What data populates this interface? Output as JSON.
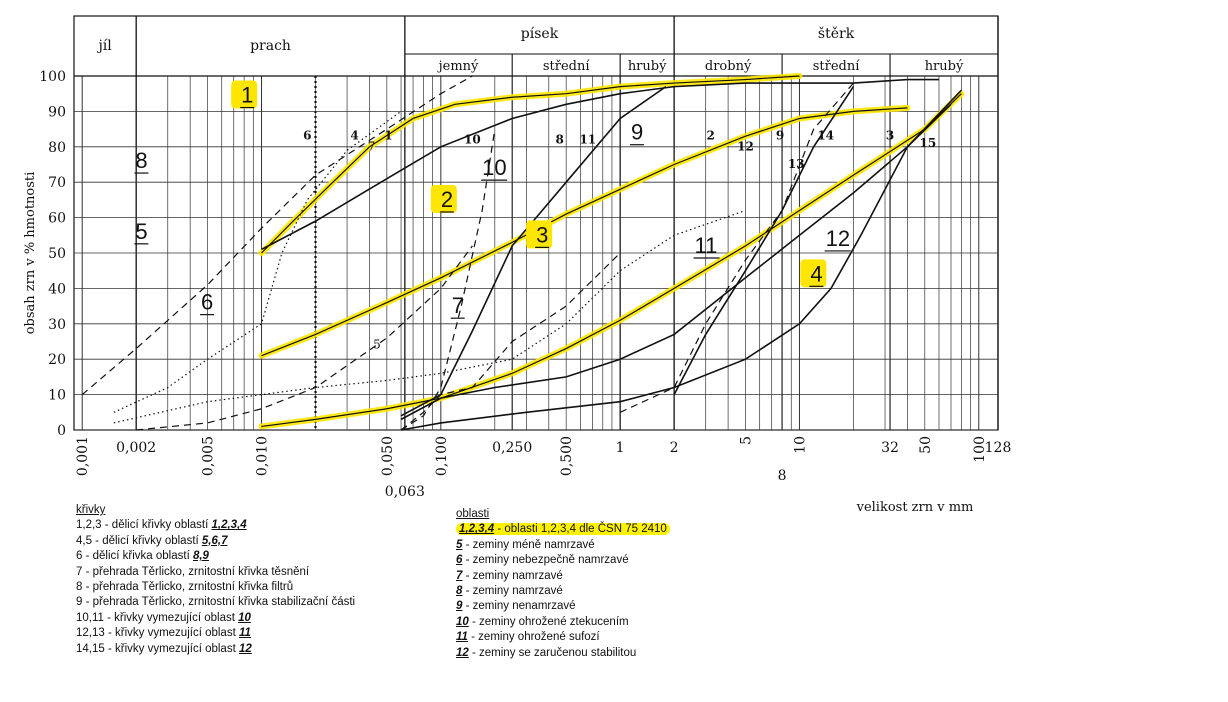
{
  "chart_data": {
    "type": "line",
    "ylabel": "obsah zrn v % hmotnosti",
    "xlabel": "velikost zrn v mm",
    "x_scale": "log",
    "xlim": [
      0.001,
      128
    ],
    "ylim": [
      0,
      100
    ],
    "grid": true,
    "y_ticks": [
      "0",
      "10",
      "20",
      "30",
      "40",
      "50",
      "60",
      "70",
      "80",
      "90",
      "100"
    ],
    "y_tick_values": [
      0,
      10,
      20,
      30,
      40,
      50,
      60,
      70,
      80,
      90,
      100
    ],
    "x_tick_labels": [
      {
        "v": 0.001,
        "t": "0,001",
        "rot": true
      },
      {
        "v": 0.002,
        "t": "0,002",
        "rot": false
      },
      {
        "v": 0.005,
        "t": "0,005",
        "rot": true
      },
      {
        "v": 0.01,
        "t": "0,010",
        "rot": true
      },
      {
        "v": 0.05,
        "t": "0,050",
        "rot": true
      },
      {
        "v": 0.063,
        "t": "0,063",
        "rot": false,
        "low": true
      },
      {
        "v": 0.1,
        "t": "0,100",
        "rot": true
      },
      {
        "v": 0.25,
        "t": "0,250",
        "rot": false
      },
      {
        "v": 0.5,
        "t": "0,500",
        "rot": true
      },
      {
        "v": 1,
        "t": "1",
        "rot": false
      },
      {
        "v": 2,
        "t": "2",
        "rot": false
      },
      {
        "v": 5,
        "t": "5",
        "rot": true
      },
      {
        "v": 8,
        "t": "8",
        "rot": false
      },
      {
        "v": 10,
        "t": "10",
        "rot": true
      },
      {
        "v": 32,
        "t": "32",
        "rot": false
      },
      {
        "v": 50,
        "t": "50",
        "rot": true
      },
      {
        "v": 100,
        "t": "100",
        "rot": true
      },
      {
        "v": 128,
        "t": "128",
        "rot": false
      }
    ],
    "header": {
      "row1": [
        {
          "label": "jíl",
          "from": 0.0009,
          "to": 0.002
        },
        {
          "label": "prach",
          "from": 0.002,
          "to": 0.063
        },
        {
          "label": "písek",
          "from": 0.063,
          "to": 2
        },
        {
          "label": "štěrk",
          "from": 2,
          "to": 128
        }
      ],
      "row2": [
        {
          "label": "jemný",
          "from": 0.063,
          "to": 0.25
        },
        {
          "label": "střední",
          "from": 0.25,
          "to": 1
        },
        {
          "label": "hrubý",
          "from": 1,
          "to": 2
        },
        {
          "label": "drobný",
          "from": 2,
          "to": 8
        },
        {
          "label": "střední",
          "from": 8,
          "to": 32
        },
        {
          "label": "hrubý",
          "from": 32,
          "to": 128
        }
      ]
    },
    "series": [
      {
        "name": "1",
        "style": "solid-yellow",
        "x": [
          0.01,
          0.015,
          0.025,
          0.04,
          0.07,
          0.12,
          0.25,
          0.5,
          1,
          2,
          5,
          10
        ],
        "y": [
          50,
          59,
          70,
          80,
          88,
          92,
          94,
          95,
          97,
          98,
          99,
          100
        ]
      },
      {
        "name": "2",
        "style": "solid-yellow",
        "x": [
          0.01,
          0.02,
          0.05,
          0.1,
          0.25,
          0.5,
          1,
          2,
          5,
          10,
          20,
          40
        ],
        "y": [
          21,
          27,
          36,
          43,
          53,
          61,
          68,
          75,
          83,
          88,
          90,
          91
        ]
      },
      {
        "name": "3",
        "style": "solid-yellow",
        "x": [
          0.01,
          0.02,
          0.05,
          0.1,
          0.25,
          0.5,
          1,
          2,
          5,
          10,
          20,
          50,
          80
        ],
        "y": [
          1,
          3,
          6,
          9,
          16,
          23,
          31,
          40,
          52,
          62,
          72,
          85,
          95
        ]
      },
      {
        "name": "4",
        "style": "solid",
        "x": [
          0.01,
          0.02,
          0.05,
          0.1,
          0.25,
          0.5,
          1,
          2,
          5,
          10,
          20,
          40,
          60
        ],
        "y": [
          51,
          59,
          71,
          80,
          88,
          92,
          95,
          97,
          98,
          98,
          98,
          99,
          99
        ]
      },
      {
        "name": "5",
        "style": "dashed",
        "x": [
          0.002,
          0.005,
          0.01,
          0.02,
          0.05,
          0.1,
          0.15
        ],
        "y": [
          0,
          2,
          6,
          12,
          26,
          40,
          52
        ]
      },
      {
        "name": "6",
        "style": "dashed",
        "x": [
          0.001,
          0.002,
          0.005,
          0.01,
          0.02,
          0.05,
          0.1,
          0.15
        ],
        "y": [
          10,
          23,
          41,
          57,
          72,
          85,
          95,
          100
        ]
      },
      {
        "name": "7",
        "style": "dotted",
        "x": [
          0.0015,
          0.003,
          0.005,
          0.01,
          0.013,
          0.018,
          0.03,
          0.06
        ],
        "y": [
          5,
          12,
          20,
          30,
          50,
          65,
          79,
          90
        ]
      },
      {
        "name": "8",
        "style": "dashed",
        "x": [
          0.06,
          0.08,
          0.1,
          0.13,
          0.17,
          0.2
        ],
        "y": [
          0,
          4,
          12,
          35,
          62,
          85
        ]
      },
      {
        "name": "9",
        "style": "solid",
        "x": [
          0.06,
          0.1,
          0.15,
          0.25,
          0.5,
          1,
          1.8
        ],
        "y": [
          4,
          10,
          28,
          52,
          70,
          88,
          97
        ]
      },
      {
        "name": "10",
        "style": "dashed",
        "x": [
          0.06,
          0.08,
          0.1,
          0.15,
          0.25,
          0.5,
          1
        ],
        "y": [
          0,
          5,
          10,
          12,
          25,
          35,
          50
        ]
      },
      {
        "name": "11",
        "style": "solid",
        "x": [
          0.06,
          0.1,
          0.2,
          0.5,
          1,
          2,
          5,
          10,
          20,
          40,
          70
        ],
        "y": [
          3,
          9,
          12,
          15,
          20,
          27,
          43,
          55,
          67,
          80,
          92
        ]
      },
      {
        "name": "12",
        "style": "solid",
        "x": [
          0.06,
          0.1,
          0.3,
          1,
          2,
          5,
          10,
          15,
          22,
          40,
          80
        ],
        "y": [
          0,
          2,
          5,
          8,
          12,
          20,
          30,
          40,
          55,
          80,
          96
        ]
      },
      {
        "name": "13",
        "style": "dotted",
        "x": [
          0.0015,
          0.005,
          0.02,
          0.05,
          0.1,
          0.25,
          0.5,
          1,
          2,
          5
        ],
        "y": [
          2,
          8,
          12,
          14,
          16,
          20,
          30,
          45,
          55,
          62
        ]
      },
      {
        "name": "14",
        "style": "dashed",
        "x": [
          1,
          2,
          3,
          5,
          8,
          12,
          20
        ],
        "y": [
          5,
          12,
          30,
          48,
          62,
          85,
          98
        ]
      },
      {
        "name": "15",
        "style": "solid",
        "x": [
          2,
          3,
          5,
          8,
          12,
          20
        ],
        "y": [
          10,
          27,
          45,
          62,
          80,
          97
        ]
      }
    ],
    "curve_labels": [
      {
        "t": "1",
        "x": 0.051,
        "y": 82,
        "bold": true
      },
      {
        "t": "2",
        "x": 3.2,
        "y": 82,
        "bold": true
      },
      {
        "t": "3",
        "x": 32,
        "y": 82,
        "bold": true
      },
      {
        "t": "4",
        "x": 0.033,
        "y": 82,
        "bold": true
      },
      {
        "t": "5",
        "x": 0.044,
        "y": 23,
        "bold": false
      },
      {
        "t": "6",
        "x": 0.018,
        "y": 82,
        "bold": true
      },
      {
        "t": "7",
        "x": 0.041,
        "y": 79,
        "bold": false
      },
      {
        "t": "8",
        "x": 0.46,
        "y": 81,
        "bold": true
      },
      {
        "t": "9",
        "x": 7.8,
        "y": 82,
        "bold": true
      },
      {
        "t": "10",
        "x": 0.15,
        "y": 81,
        "bold": true
      },
      {
        "t": "11",
        "x": 0.66,
        "y": 81,
        "bold": true
      },
      {
        "t": "12",
        "x": 5.0,
        "y": 79,
        "bold": true
      },
      {
        "t": "13",
        "x": 9.6,
        "y": 74,
        "bold": true
      },
      {
        "t": "14",
        "x": 14,
        "y": 82,
        "bold": true
      },
      {
        "t": "15",
        "x": 52,
        "y": 80,
        "bold": true
      }
    ],
    "area_labels": [
      {
        "t": "1",
        "x": 0.0077,
        "y": 92.5,
        "hl": true
      },
      {
        "t": "2",
        "x": 0.1,
        "y": 63,
        "hl": true
      },
      {
        "t": "3",
        "x": 0.34,
        "y": 53,
        "hl": true
      },
      {
        "t": "4",
        "x": 11.5,
        "y": 42,
        "hl": true
      },
      {
        "t": "5",
        "x": 0.00198,
        "y": 54,
        "hl": false
      },
      {
        "t": "6",
        "x": 0.0046,
        "y": 34,
        "hl": false
      },
      {
        "t": "7",
        "x": 0.115,
        "y": 33,
        "hl": false
      },
      {
        "t": "8",
        "x": 0.00198,
        "y": 74,
        "hl": false
      },
      {
        "t": "9",
        "x": 1.15,
        "y": 82,
        "hl": false
      },
      {
        "t": "10",
        "x": 0.17,
        "y": 72,
        "hl": false
      },
      {
        "t": "11",
        "x": 2.6,
        "y": 50,
        "hl": false
      },
      {
        "t": "12",
        "x": 14,
        "y": 52,
        "hl": false
      }
    ]
  },
  "legend_left": {
    "title": "křivky",
    "rows": [
      {
        "prefix": "1,2,3 - dělicí křivky oblastí ",
        "em": "1,2,3,4"
      },
      {
        "prefix": "4,5 - dělicí křivky oblastí ",
        "em": "5,6,7"
      },
      {
        "prefix": "6 - dělicí křivka oblastí ",
        "em": "8,9"
      },
      {
        "prefix": "7 - přehrada Těrlicko, zrnitostní křivka těsnění",
        "em": ""
      },
      {
        "prefix": "8 - přehrada Těrlicko, zrnitostní křivka filtrů",
        "em": ""
      },
      {
        "prefix": "9 - přehrada Těrlicko, zrnitostní křivka stabilizační části",
        "em": ""
      },
      {
        "prefix": "10,11 - křivky vymezující oblast ",
        "em": "10"
      },
      {
        "prefix": "12,13 - křivky vymezující oblast ",
        "em": "11"
      },
      {
        "prefix": "14,15 - křivky vymezující oblast ",
        "em": "12"
      }
    ]
  },
  "legend_right": {
    "title": "oblasti",
    "rows": [
      {
        "em": "1,2,3,4",
        "text": " - oblasti 1,2,3,4 dle ČSN 75 2410",
        "hl": true
      },
      {
        "em": "5",
        "text": " - zeminy méně namrzavé",
        "hl": false
      },
      {
        "em": "6",
        "text": " - zeminy nebezpečně namrzavé",
        "hl": false
      },
      {
        "em": "7",
        "text": " - zeminy namrzavé",
        "hl": false
      },
      {
        "em": "8",
        "text": " - zeminy namrzavé",
        "hl": false
      },
      {
        "em": "9",
        "text": " - zeminy nenamrzavé",
        "hl": false
      },
      {
        "em": "10",
        "text": " - zeminy ohrožené ztekucením",
        "hl": false
      },
      {
        "em": "11",
        "text": " - zeminy ohrožené sufozí",
        "hl": false
      },
      {
        "em": "12",
        "text": " - zeminy se zaručenou stabilitou",
        "hl": false
      }
    ]
  },
  "colors": {
    "highlight": "#ffe600",
    "ink": "#111111"
  }
}
